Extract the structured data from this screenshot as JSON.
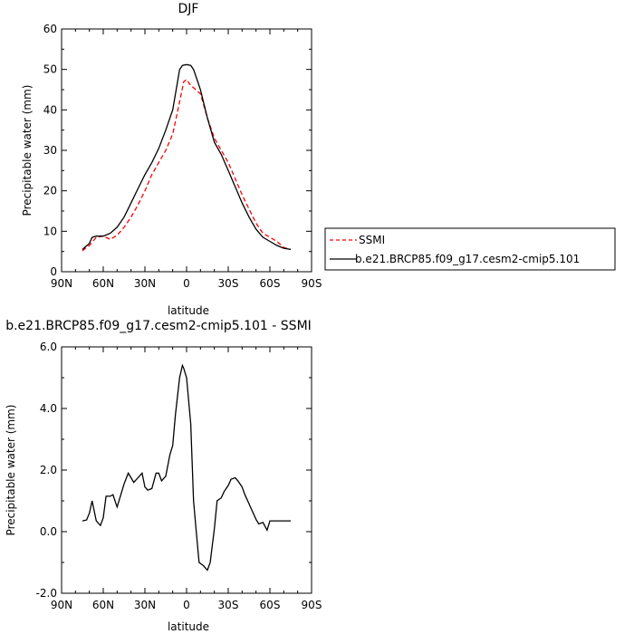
{
  "colors": {
    "ssmi": "#ff0000",
    "model": "#000000"
  },
  "chart_data": [
    {
      "type": "line",
      "title": "DJF",
      "xlabel": "latitude",
      "ylabel": "Precipitable water (mm)",
      "x_ticks": [
        "90N",
        "60N",
        "30N",
        "0",
        "30S",
        "60S",
        "90S"
      ],
      "y_ticks": [
        "0",
        "10",
        "20",
        "30",
        "40",
        "50",
        "60"
      ],
      "xlim": [
        -90,
        90
      ],
      "ylim": [
        0,
        60
      ],
      "x_note": "negative = N, positive = S",
      "legend": {
        "position": "right",
        "entries": [
          "SSMI",
          "b.e21.BRCP85.f09_g17.cesm2-cmip5.101"
        ]
      },
      "series": [
        {
          "name": "SSMI",
          "style": "dashed",
          "color": "#ff0000",
          "x": [
            -75,
            -70,
            -65,
            -60,
            -55,
            -50,
            -45,
            -40,
            -35,
            -30,
            -25,
            -20,
            -15,
            -10,
            -5,
            -2,
            0,
            3,
            5,
            10,
            15,
            20,
            25,
            30,
            35,
            40,
            45,
            50,
            55,
            60,
            65,
            70,
            75
          ],
          "y": [
            5.2,
            6.5,
            8.5,
            8.8,
            8.0,
            9.0,
            11.0,
            13.5,
            16.5,
            20.0,
            24.0,
            27.0,
            30.0,
            34.0,
            42.0,
            47.0,
            47.5,
            46.0,
            45.5,
            44.0,
            38.0,
            33.0,
            30.0,
            27.0,
            23.0,
            19.0,
            15.5,
            12.0,
            9.5,
            8.5,
            7.5,
            6.0,
            5.5
          ]
        },
        {
          "name": "b.e21.BRCP85.f09_g17.cesm2-cmip5.101",
          "style": "solid",
          "color": "#000000",
          "x": [
            -75,
            -70,
            -68,
            -65,
            -60,
            -55,
            -50,
            -45,
            -40,
            -35,
            -30,
            -25,
            -20,
            -15,
            -10,
            -7,
            -5,
            -3,
            0,
            3,
            5,
            8,
            10,
            15,
            20,
            25,
            30,
            35,
            40,
            45,
            50,
            55,
            60,
            65,
            70,
            75
          ],
          "y": [
            5.5,
            7.0,
            8.5,
            8.8,
            8.8,
            9.5,
            11.0,
            13.5,
            17.0,
            20.5,
            24.0,
            27.0,
            30.5,
            35.0,
            40.0,
            46.0,
            50.0,
            51.0,
            51.2,
            51.0,
            50.0,
            47.0,
            45.0,
            38.0,
            32.0,
            29.0,
            25.0,
            21.0,
            17.0,
            13.5,
            10.5,
            8.5,
            7.5,
            6.5,
            5.8,
            5.5
          ]
        }
      ]
    },
    {
      "type": "line",
      "title": "b.e21.BRCP85.f09_g17.cesm2-cmip5.101 - SSMI",
      "xlabel": "latitude",
      "ylabel": "Precipitable water (mm)",
      "x_ticks": [
        "90N",
        "60N",
        "30N",
        "0",
        "30S",
        "60S",
        "90S"
      ],
      "y_ticks": [
        "-2.0",
        "0.0",
        "2.0",
        "4.0",
        "6.0"
      ],
      "xlim": [
        -90,
        90
      ],
      "ylim": [
        -2,
        6
      ],
      "series": [
        {
          "style": "solid",
          "color": "#000000",
          "x": [
            -75,
            -72,
            -70,
            -68,
            -65,
            -62,
            -60,
            -58,
            -55,
            -53,
            -50,
            -48,
            -45,
            -42,
            -40,
            -38,
            -35,
            -32,
            -30,
            -28,
            -25,
            -22,
            -20,
            -18,
            -15,
            -12,
            -10,
            -8,
            -5,
            -3,
            -2,
            0,
            3,
            5,
            7,
            9,
            12,
            15,
            17,
            20,
            22,
            25,
            27,
            30,
            32,
            35,
            37,
            40,
            42,
            45,
            48,
            50,
            52,
            55,
            58,
            60,
            62,
            65,
            68,
            70,
            72,
            75
          ],
          "y": [
            0.35,
            0.38,
            0.6,
            1.0,
            0.35,
            0.2,
            0.45,
            1.15,
            1.15,
            1.2,
            0.8,
            1.1,
            1.55,
            1.9,
            1.75,
            1.6,
            1.75,
            1.9,
            1.45,
            1.35,
            1.4,
            1.9,
            1.9,
            1.65,
            1.8,
            2.5,
            2.8,
            3.8,
            5.0,
            5.4,
            5.3,
            5.0,
            3.5,
            1.0,
            0.0,
            -1.0,
            -1.1,
            -1.25,
            -1.0,
            0.1,
            1.0,
            1.1,
            1.3,
            1.5,
            1.7,
            1.75,
            1.65,
            1.45,
            1.2,
            0.9,
            0.6,
            0.4,
            0.25,
            0.3,
            0.05,
            0.35,
            0.35,
            0.35,
            0.35,
            0.35,
            0.35,
            0.35
          ]
        }
      ]
    }
  ]
}
